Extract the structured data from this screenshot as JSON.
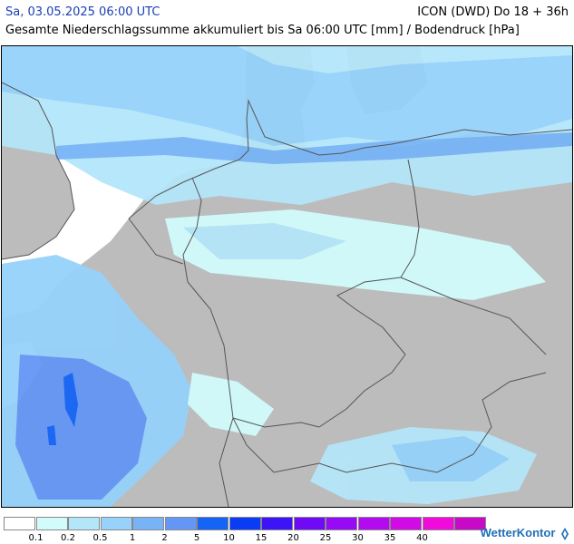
{
  "header": {
    "date": "Sa, 03.05.2025 06:00 UTC",
    "model": "ICON (DWD) Do 18 + 36h",
    "subtitle": "Gesamte Niederschlagssumme akkumuliert bis Sa 06:00 UTC [mm] / Bodendruck [hPa]"
  },
  "legend": {
    "colors": [
      "#ffffff",
      "#d2fcfc",
      "#b4e6fa",
      "#96d2fa",
      "#78b4f5",
      "#6496f5",
      "#1464f5",
      "#0a3cf5",
      "#3c14f5",
      "#6e0af5",
      "#960af5",
      "#b40af0",
      "#d20ae6",
      "#f00adc",
      "#c80ac8"
    ],
    "ticks": [
      "0.1",
      "0.2",
      "0.5",
      "1",
      "2",
      "5",
      "10",
      "15",
      "20",
      "25",
      "30",
      "35",
      "40"
    ]
  },
  "map": {
    "land_color": "#bcbcbc",
    "sea_color": "#ffffff",
    "border_color": "#555555"
  },
  "brand": {
    "name": "WetterKontor",
    "icon": "wetterkontor-logo-icon"
  }
}
